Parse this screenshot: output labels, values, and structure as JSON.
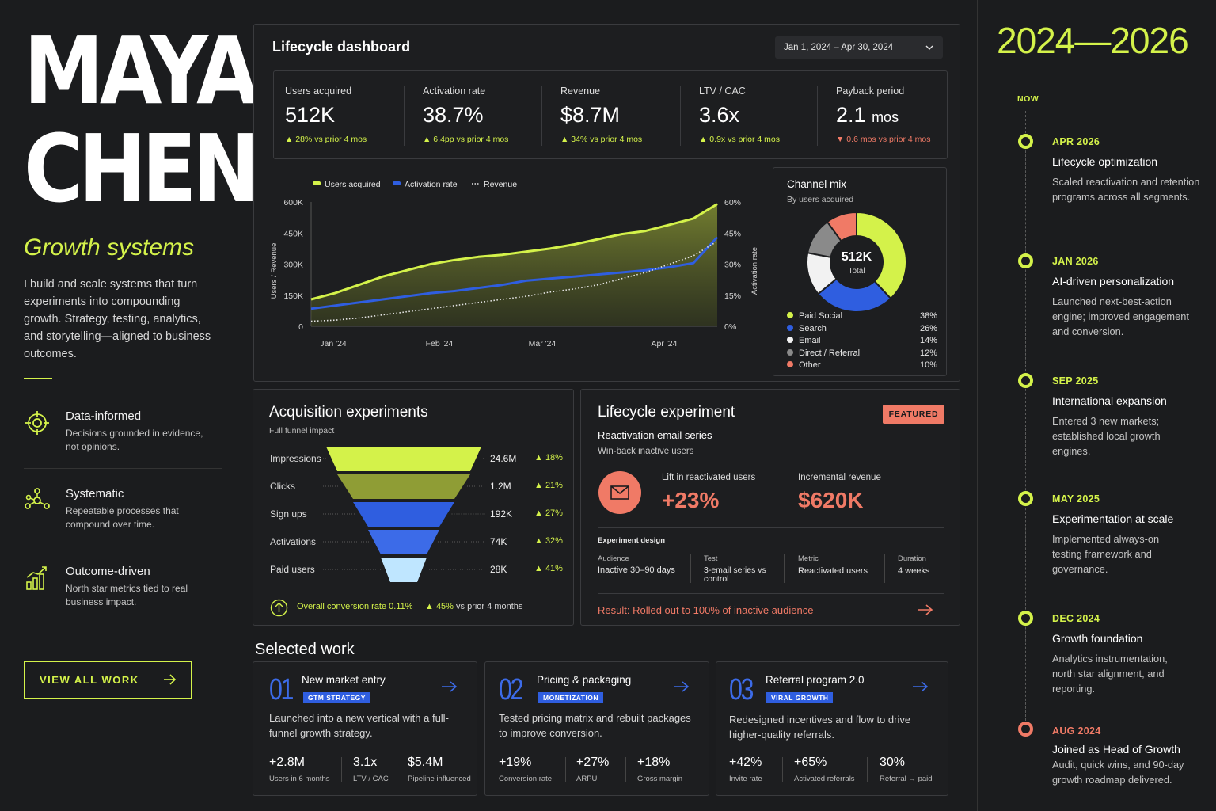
{
  "profile": {
    "first_name": "MAYA",
    "last_name": "CHEN",
    "tagline": "Growth systems",
    "bio": "I build and scale systems that turn experiments into compounding growth. Strategy, testing, analytics, and storytelling—aligned to business outcomes.",
    "pillars": [
      {
        "title": "Data-informed",
        "desc": "Decisions grounded in evidence, not opinions.",
        "icon": "target-icon"
      },
      {
        "title": "Systematic",
        "desc": "Repeatable processes that compound over time.",
        "icon": "network-icon"
      },
      {
        "title": "Outcome-driven",
        "desc": "North star metrics tied to real business impact.",
        "icon": "growth-chart-icon"
      }
    ],
    "view_all_label": "VIEW ALL WORK",
    "accent": "#d4f24a"
  },
  "dashboard": {
    "title": "Lifecycle dashboard",
    "date_range": "Jan 1, 2024 – Apr 30, 2024",
    "kpis": [
      {
        "label": "Users acquired",
        "value": "512K",
        "change": "▲ 28% vs prior 4 mos"
      },
      {
        "label": "Activation rate",
        "value": "38.7%",
        "change": "▲ 6.4pp vs prior 4 mos"
      },
      {
        "label": "Revenue",
        "value": "$8.7M",
        "change": "▲ 34% vs prior 4 mos"
      },
      {
        "label": "LTV / CAC",
        "value": "3.6x",
        "change": "▲ 0.9x vs prior 4 mos"
      },
      {
        "label": "Payback period",
        "value": "2.1",
        "unit": "mos",
        "change": "▼ 0.6 mos vs prior 4 mos"
      }
    ],
    "channel_mix": {
      "title": "Channel mix",
      "subtitle": "By users acquired",
      "total": "512K",
      "total_label": "Total",
      "items": [
        {
          "name": "Paid Social",
          "pct": "38%",
          "value": 38,
          "color": "#d4f24a"
        },
        {
          "name": "Search",
          "pct": "26%",
          "value": 26,
          "color": "#2f5ee0"
        },
        {
          "name": "Email",
          "pct": "14%",
          "value": 14,
          "color": "#f2f2f2"
        },
        {
          "name": "Direct / Referral",
          "pct": "12%",
          "value": 12,
          "color": "#8a8a8a"
        },
        {
          "name": "Other",
          "pct": "10%",
          "value": 10,
          "color": "#f07a66"
        }
      ]
    }
  },
  "chart_data": {
    "type": "line",
    "legend": [
      "Users acquired",
      "Activation rate",
      "Revenue"
    ],
    "x_ticks": [
      "Jan '24",
      "Feb '24",
      "Mar '24",
      "Apr '24"
    ],
    "y_left_ticks": [
      "600K",
      "450K",
      "300K",
      "150K",
      "0"
    ],
    "y_right_ticks": [
      "60%",
      "45%",
      "30%",
      "15%",
      "0%"
    ],
    "ylabel_left": "Users / Revenue",
    "ylabel_right": "Activation rate",
    "ylim_left": [
      0,
      600000
    ],
    "ylim_right": [
      0,
      60
    ],
    "x": [
      "2024-01-01",
      "2024-01-08",
      "2024-01-15",
      "2024-01-22",
      "2024-01-29",
      "2024-02-05",
      "2024-02-12",
      "2024-02-19",
      "2024-02-26",
      "2024-03-04",
      "2024-03-11",
      "2024-03-18",
      "2024-03-25",
      "2024-04-01",
      "2024-04-08",
      "2024-04-15",
      "2024-04-22",
      "2024-04-30"
    ],
    "series": [
      {
        "name": "Users acquired",
        "axis": "left",
        "color": "#d4f24a",
        "style": "solid",
        "values": [
          130000,
          160000,
          200000,
          240000,
          270000,
          300000,
          320000,
          335000,
          345000,
          360000,
          375000,
          395000,
          420000,
          445000,
          460000,
          490000,
          520000,
          590000
        ]
      },
      {
        "name": "Activation rate",
        "axis": "right",
        "color": "#2f5ee0",
        "style": "solid",
        "values": [
          8.5,
          10,
          11.5,
          13,
          14.5,
          16,
          17,
          18.5,
          20,
          22,
          23,
          24,
          25,
          26,
          27,
          28.5,
          30.5,
          43
        ]
      },
      {
        "name": "Revenue",
        "axis": "left",
        "color": "#e6e6e6",
        "style": "dotted",
        "values": [
          25000,
          30000,
          40000,
          55000,
          70000,
          85000,
          100000,
          115000,
          130000,
          145000,
          165000,
          180000,
          200000,
          230000,
          260000,
          300000,
          340000,
          410000
        ]
      }
    ]
  },
  "acquisition": {
    "title": "Acquisition experiments",
    "subtitle": "Full funnel impact",
    "stages": [
      {
        "label": "Impressions",
        "value": "24.6M",
        "change": "▲ 18%",
        "color": "#d4f24a"
      },
      {
        "label": "Clicks",
        "value": "1.2M",
        "change": "▲ 21%",
        "color": "#8f9d35"
      },
      {
        "label": "Sign ups",
        "value": "192K",
        "change": "▲ 27%",
        "color": "#2f5ee0"
      },
      {
        "label": "Activations",
        "value": "74K",
        "change": "▲ 32%",
        "color": "#3c6be8"
      },
      {
        "label": "Paid users",
        "value": "28K",
        "change": "▲ 41%",
        "color": "#bfe6ff"
      }
    ],
    "overall": "Overall conversion rate 0.11%",
    "overall_change_value": "▲ 45%",
    "overall_change_text": "vs prior 4 months"
  },
  "lifecycle": {
    "title": "Lifecycle experiment",
    "badge": "FEATURED",
    "name": "Reactivation email series",
    "desc": "Win-back inactive users",
    "lift_label": "Lift in reactivated users",
    "lift_value": "+23%",
    "rev_label": "Incremental revenue",
    "rev_value": "$620K",
    "design_label": "Experiment design",
    "design": [
      {
        "label": "Audience",
        "value": "Inactive 30–90 days"
      },
      {
        "label": "Test",
        "value": "3-email series vs control"
      },
      {
        "label": "Metric",
        "value": "Reactivated users"
      },
      {
        "label": "Duration",
        "value": "4 weeks"
      }
    ],
    "result": "Result: Rolled out to 100% of inactive audience"
  },
  "work": {
    "title": "Selected work",
    "cards": [
      {
        "num": "01",
        "title": "New market entry",
        "tag": "GTM STRATEGY",
        "desc": "Launched into a new vertical with a full-funnel growth strategy.",
        "metrics": [
          {
            "v": "+2.8M",
            "l": "Users in 6 months"
          },
          {
            "v": "3.1x",
            "l": "LTV / CAC"
          },
          {
            "v": "$5.4M",
            "l": "Pipeline influenced"
          }
        ]
      },
      {
        "num": "02",
        "title": "Pricing & packaging",
        "tag": "MONETIZATION",
        "desc": "Tested pricing matrix and rebuilt packages to improve conversion.",
        "metrics": [
          {
            "v": "+19%",
            "l": "Conversion rate"
          },
          {
            "v": "+27%",
            "l": "ARPU"
          },
          {
            "v": "+18%",
            "l": "Gross margin"
          }
        ]
      },
      {
        "num": "03",
        "title": "Referral program 2.0",
        "tag": "VIRAL GROWTH",
        "desc": "Redesigned incentives and flow to drive higher-quality referrals.",
        "metrics": [
          {
            "v": "+42%",
            "l": "Invite rate"
          },
          {
            "v": "+65%",
            "l": "Activated referrals"
          },
          {
            "v": "30%",
            "l": "Referral → paid"
          }
        ]
      }
    ]
  },
  "timeline": {
    "years": "2024—2026",
    "now": "NOW",
    "events": [
      {
        "date": "APR 2026",
        "title": "Lifecycle optimization",
        "desc": "Scaled reactivation and retention programs across all segments."
      },
      {
        "date": "JAN 2026",
        "title": "AI-driven personalization",
        "desc": "Launched next-best-action engine; improved engagement and conversion."
      },
      {
        "date": "SEP 2025",
        "title": "International expansion",
        "desc": "Entered 3 new markets; established local growth engines."
      },
      {
        "date": "MAY 2025",
        "title": "Experimentation at scale",
        "desc": "Implemented always-on testing framework and governance."
      },
      {
        "date": "DEC 2024",
        "title": "Growth foundation",
        "desc": "Analytics instrumentation, north star alignment, and reporting."
      },
      {
        "date": "AUG 2024",
        "title": "Joined as Head of Growth",
        "desc": "Audit, quick wins, and 90-day growth roadmap delivered."
      }
    ]
  }
}
